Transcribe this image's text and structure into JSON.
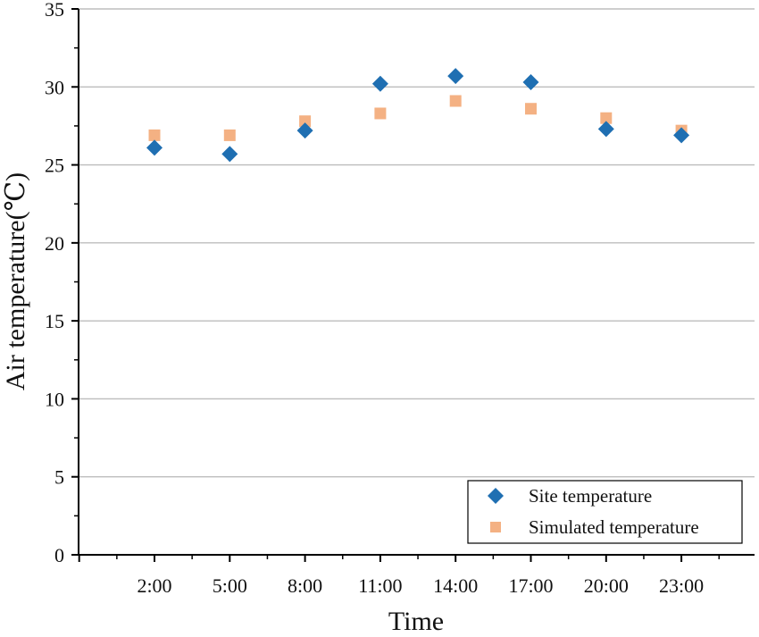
{
  "chart_data": {
    "type": "scatter",
    "xlabel": "Time",
    "ylabel": "Air temperature(℃)",
    "categories": [
      "2:00",
      "5:00",
      "8:00",
      "11:00",
      "14:00",
      "17:00",
      "20:00",
      "23:00"
    ],
    "ylim": [
      0,
      35
    ],
    "yticks": [
      0,
      5,
      10,
      15,
      20,
      25,
      30,
      35
    ],
    "grid": "horizontal",
    "legend_position": "bottom-right",
    "series": [
      {
        "name": "Site temperature",
        "marker": "diamond",
        "color": "#1f6fb2",
        "values": [
          26.1,
          25.7,
          27.2,
          30.2,
          30.7,
          30.3,
          27.3,
          26.9
        ]
      },
      {
        "name": "Simulated temperature",
        "marker": "square",
        "color": "#f4b183",
        "values": [
          26.9,
          26.9,
          27.8,
          28.3,
          29.1,
          28.6,
          28.0,
          27.2
        ]
      }
    ]
  }
}
